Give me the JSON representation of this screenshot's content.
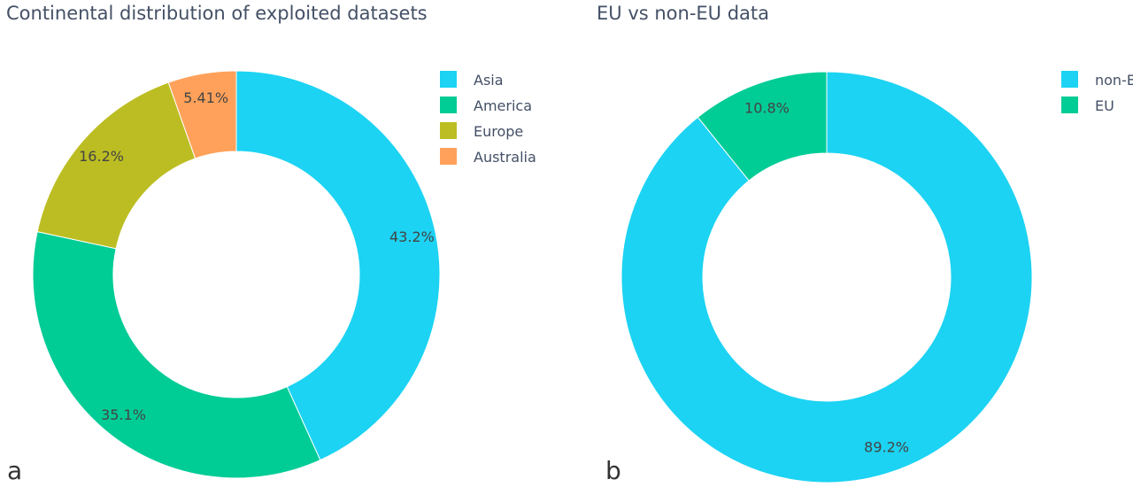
{
  "chart_data": [
    {
      "type": "pie",
      "hole": true,
      "title": "Continental distribution of exploited datasets",
      "panel_label": "a",
      "labels": [
        "Asia",
        "America",
        "Europe",
        "Australia"
      ],
      "values": [
        43.2,
        35.1,
        16.2,
        5.41
      ],
      "value_labels": [
        "43.2%",
        "35.1%",
        "16.2%",
        "5.41%"
      ],
      "colors": [
        "#1cd3f3",
        "#00cc96",
        "#bcbd22",
        "#ffa15a"
      ],
      "legend_position": "top-right"
    },
    {
      "type": "pie",
      "hole": true,
      "title": "EU vs non-EU data",
      "panel_label": "b",
      "labels": [
        "non-EU",
        "EU"
      ],
      "values": [
        89.2,
        10.8
      ],
      "value_labels": [
        "89.2%",
        "10.8%"
      ],
      "colors": [
        "#1cd3f3",
        "#00cc96"
      ],
      "legend_position": "top-right"
    }
  ]
}
